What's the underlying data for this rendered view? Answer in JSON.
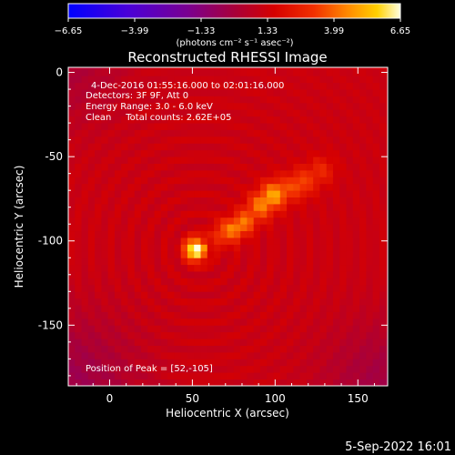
{
  "chart_data": {
    "type": "heatmap",
    "title": "Reconstructed RHESSI Image",
    "xlabel": "Heliocentric X (arcsec)",
    "ylabel": "Heliocentric Y (arcsec)",
    "xlim": [
      -25,
      168
    ],
    "ylim": [
      -186,
      3
    ],
    "x_ticks": [
      0,
      50,
      100,
      150
    ],
    "y_ticks": [
      0,
      -50,
      -100,
      -150
    ],
    "colorbar": {
      "range": [
        -6.65,
        6.65
      ],
      "ticks": [
        -6.65,
        -3.99,
        -1.33,
        1.33,
        3.99,
        6.65
      ],
      "tick_labels": [
        "−6.65",
        "−3.99",
        "−1.33",
        "1.33",
        "3.99",
        "6.65"
      ],
      "unit_label": "(photons cm⁻² s⁻¹ asec⁻²)",
      "colormap": "blue-purple-red-orange-yellow-white"
    },
    "annotations": [
      "4-Dec-2016 01:55:16.000 to 02:01:16.000",
      "Detectors: 3F 9F, Att 0",
      "Energy Range: 3.0 - 6.0 keV",
      "Clean     Total counts: 2.62E+05",
      "Position of Peak = [52,-105]"
    ],
    "peak": {
      "x": 52,
      "y": -105
    },
    "emission_sources": [
      {
        "x": 52,
        "y": -105,
        "amplitude": 6.4,
        "sigma": 4.5
      },
      {
        "x": 70,
        "y": -95,
        "amplitude": 2.6,
        "sigma": 5.5
      },
      {
        "x": 80,
        "y": -90,
        "amplitude": 2.8,
        "sigma": 5
      },
      {
        "x": 90,
        "y": -80,
        "amplitude": 2.6,
        "sigma": 6
      },
      {
        "x": 100,
        "y": -72,
        "amplitude": 3.4,
        "sigma": 6
      },
      {
        "x": 115,
        "y": -66,
        "amplitude": 2.3,
        "sigma": 6
      },
      {
        "x": 128,
        "y": -58,
        "amplitude": 1.5,
        "sigma": 6
      }
    ],
    "background_level": 1.2,
    "ring_pattern": {
      "center_x": 55,
      "center_y": -105,
      "period_arcsec": 11,
      "amplitude": 0.45
    }
  },
  "footer": {
    "date": "5-Sep-2022 16:01"
  }
}
